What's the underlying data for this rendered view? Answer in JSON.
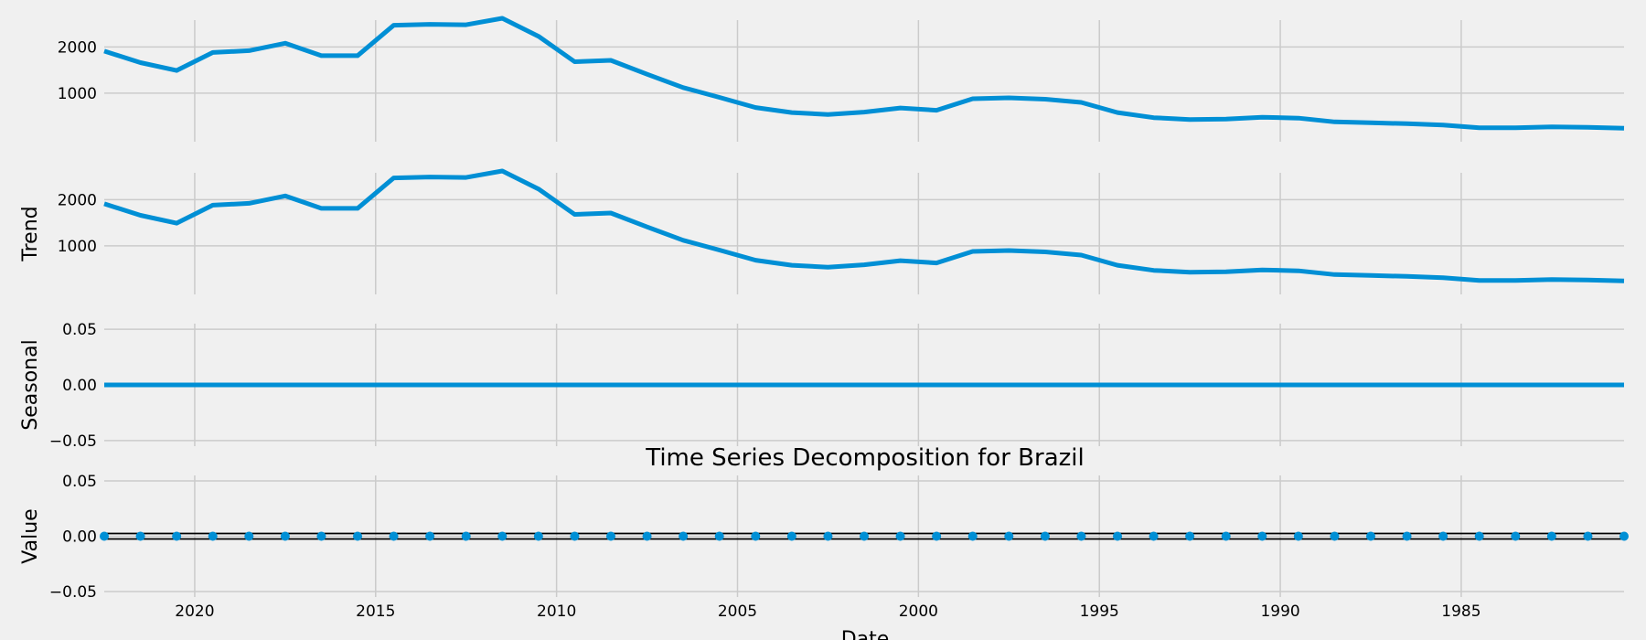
{
  "chart_data": {
    "type": "line",
    "title": "Time Series Decomposition for Brazil",
    "xlabel": "Date",
    "x": [
      2022.5,
      2021.5,
      2020.5,
      2019.5,
      2018.5,
      2017.5,
      2016.5,
      2015.5,
      2014.5,
      2013.5,
      2012.5,
      2011.5,
      2010.5,
      2009.5,
      2008.5,
      2007.5,
      2006.5,
      2005.5,
      2004.5,
      2003.5,
      2002.5,
      2001.5,
      2000.5,
      1999.5,
      1998.5,
      1997.5,
      1996.5,
      1995.5,
      1994.5,
      1993.5,
      1992.5,
      1991.5,
      1990.5,
      1989.5,
      1988.5,
      1987.5,
      1986.5,
      1985.5,
      1984.5,
      1983.5,
      1982.5,
      1981.5,
      1980.5
    ],
    "xlim": [
      2022.5,
      1980.5
    ],
    "xticks": [
      "2020",
      "2015",
      "2010",
      "2005",
      "2000",
      "1995",
      "1990",
      "1985"
    ],
    "xtick_values": [
      2020,
      2015,
      2010,
      2005,
      2000,
      1995,
      1990,
      1985
    ],
    "panels": [
      {
        "name": "observed",
        "ylabel": "",
        "style": "line",
        "ylim": [
          -50,
          2580
        ],
        "yticks": [
          "1000",
          "2000"
        ],
        "ytick_values": [
          1000,
          2000
        ],
        "values": [
          1910,
          1660,
          1490,
          1880,
          1920,
          2080,
          1810,
          1810,
          2470,
          2490,
          2480,
          2620,
          2230,
          1680,
          1710,
          1410,
          1120,
          910,
          690,
          580,
          540,
          590,
          680,
          630,
          880,
          900,
          870,
          800,
          580,
          470,
          430,
          440,
          480,
          460,
          380,
          360,
          340,
          310,
          250,
          250,
          270,
          260,
          240
        ]
      },
      {
        "name": "trend",
        "ylabel": "Trend",
        "style": "line",
        "ylim": [
          -50,
          2580
        ],
        "yticks": [
          "1000",
          "2000"
        ],
        "ytick_values": [
          1000,
          2000
        ],
        "values": [
          1910,
          1660,
          1490,
          1880,
          1920,
          2080,
          1810,
          1810,
          2470,
          2490,
          2480,
          2620,
          2230,
          1680,
          1710,
          1410,
          1120,
          910,
          690,
          580,
          540,
          590,
          680,
          630,
          880,
          900,
          870,
          800,
          580,
          470,
          430,
          440,
          480,
          460,
          380,
          360,
          340,
          310,
          250,
          250,
          270,
          260,
          240
        ]
      },
      {
        "name": "seasonal",
        "ylabel": "Seasonal",
        "style": "line",
        "ylim": [
          -0.055,
          0.055
        ],
        "yticks": [
          "−0.05",
          "0.00",
          "0.05"
        ],
        "ytick_values": [
          -0.05,
          0,
          0.05
        ],
        "values": [
          0,
          0,
          0,
          0,
          0,
          0,
          0,
          0,
          0,
          0,
          0,
          0,
          0,
          0,
          0,
          0,
          0,
          0,
          0,
          0,
          0,
          0,
          0,
          0,
          0,
          0,
          0,
          0,
          0,
          0,
          0,
          0,
          0,
          0,
          0,
          0,
          0,
          0,
          0,
          0,
          0,
          0,
          0
        ]
      },
      {
        "name": "residual",
        "ylabel": "Value",
        "style": "dots",
        "ylim": [
          -0.055,
          0.055
        ],
        "yticks": [
          "−0.05",
          "0.00",
          "0.05"
        ],
        "ytick_values": [
          -0.05,
          0,
          0.05
        ],
        "values": [
          0,
          0,
          0,
          0,
          0,
          0,
          0,
          0,
          0,
          0,
          0,
          0,
          0,
          0,
          0,
          0,
          0,
          0,
          0,
          0,
          0,
          0,
          0,
          0,
          0,
          0,
          0,
          0,
          0,
          0,
          0,
          0,
          0,
          0,
          0,
          0,
          0,
          0,
          0,
          0,
          0,
          0,
          0
        ]
      }
    ],
    "grid": true,
    "line_color": "#008fd5",
    "background": "#f0f0f0"
  }
}
